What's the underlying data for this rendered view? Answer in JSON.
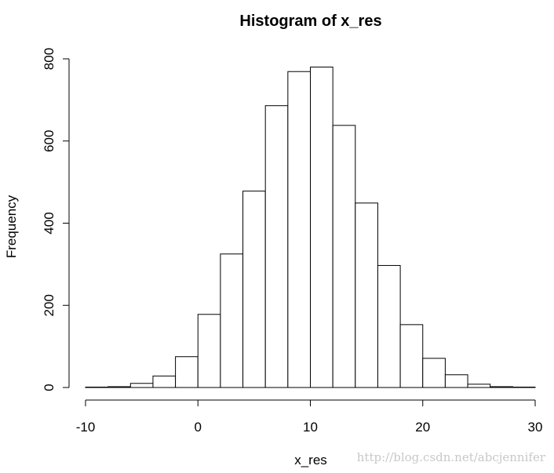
{
  "chart_data": {
    "type": "bar",
    "title": "Histogram of x_res",
    "xlabel": "x_res",
    "ylabel": "Frequency",
    "xlim": [
      -10,
      30
    ],
    "ylim": [
      0,
      800
    ],
    "x_ticks": [
      -10,
      0,
      10,
      20,
      30
    ],
    "y_ticks": [
      0,
      200,
      400,
      600,
      800
    ],
    "bin_width": 2,
    "bin_starts": [
      -10,
      -8,
      -6,
      -4,
      -2,
      0,
      2,
      4,
      6,
      8,
      10,
      12,
      14,
      16,
      18,
      20,
      22,
      24,
      26,
      28
    ],
    "values": [
      1,
      2,
      10,
      28,
      75,
      178,
      325,
      478,
      686,
      769,
      780,
      638,
      449,
      297,
      153,
      71,
      31,
      8,
      2,
      1
    ]
  },
  "watermark": "http://blog.csdn.net/abcjennifer"
}
